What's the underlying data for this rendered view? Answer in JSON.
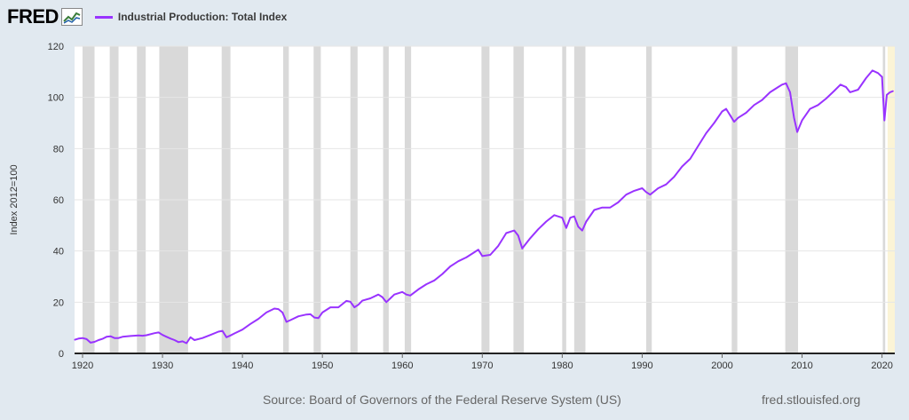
{
  "header": {
    "logo": "FRED",
    "logo_icon": "chart-line-icon",
    "legend_label": "Industrial Production: Total Index"
  },
  "footer": {
    "source": "Source: Board of Governors of the Federal Reserve System (US)",
    "url": "fred.stlouisfed.org"
  },
  "chart_data": {
    "type": "line",
    "title": "",
    "xlabel": "",
    "ylabel": "Index 2012=100",
    "xlim": [
      1919,
      2021.6
    ],
    "ylim": [
      0,
      120
    ],
    "x_ticks": [
      1920,
      1930,
      1940,
      1950,
      1960,
      1970,
      1980,
      1990,
      2000,
      2010,
      2020
    ],
    "y_ticks": [
      0,
      20,
      40,
      60,
      80,
      100,
      120
    ],
    "grid": true,
    "legend": "top-left",
    "colors": {
      "line": "#9933ff",
      "recession": "#d9d9d9",
      "highlight": "#fbf4d6",
      "plot_bg": "#ffffff"
    },
    "recessions": [
      [
        1920.0,
        1921.5
      ],
      [
        1923.4,
        1924.5
      ],
      [
        1926.8,
        1927.9
      ],
      [
        1929.6,
        1933.2
      ],
      [
        1937.4,
        1938.5
      ],
      [
        1945.1,
        1945.8
      ],
      [
        1948.9,
        1949.8
      ],
      [
        1953.5,
        1954.4
      ],
      [
        1957.6,
        1958.3
      ],
      [
        1960.3,
        1961.1
      ],
      [
        1969.9,
        1970.9
      ],
      [
        1973.9,
        1975.2
      ],
      [
        1980.0,
        1980.5
      ],
      [
        1981.5,
        1982.9
      ],
      [
        1990.5,
        1991.2
      ],
      [
        2001.2,
        2001.9
      ],
      [
        2007.9,
        2009.5
      ],
      [
        2020.1,
        2020.4
      ]
    ],
    "series": [
      {
        "name": "Industrial Production: Total Index",
        "x": [
          1919.0,
          1919.5,
          1920.0,
          1920.5,
          1921.0,
          1921.5,
          1922.0,
          1922.5,
          1923.0,
          1923.5,
          1924.0,
          1924.5,
          1925.0,
          1926.0,
          1927.0,
          1927.5,
          1928.0,
          1929.0,
          1929.5,
          1930.0,
          1930.5,
          1931.0,
          1931.5,
          1932.0,
          1932.5,
          1933.0,
          1933.5,
          1934.0,
          1935.0,
          1936.0,
          1937.0,
          1937.5,
          1938.0,
          1938.5,
          1939.0,
          1940.0,
          1941.0,
          1942.0,
          1943.0,
          1944.0,
          1944.5,
          1945.0,
          1945.5,
          1946.0,
          1947.0,
          1948.0,
          1948.5,
          1949.0,
          1949.5,
          1950.0,
          1951.0,
          1952.0,
          1953.0,
          1953.5,
          1954.0,
          1954.5,
          1955.0,
          1956.0,
          1957.0,
          1957.5,
          1958.0,
          1958.5,
          1959.0,
          1960.0,
          1960.5,
          1961.0,
          1962.0,
          1963.0,
          1964.0,
          1965.0,
          1966.0,
          1967.0,
          1968.0,
          1969.0,
          1969.5,
          1970.0,
          1971.0,
          1972.0,
          1973.0,
          1974.0,
          1974.5,
          1975.0,
          1976.0,
          1977.0,
          1978.0,
          1979.0,
          1980.0,
          1980.5,
          1981.0,
          1981.5,
          1982.0,
          1982.5,
          1983.0,
          1984.0,
          1985.0,
          1986.0,
          1987.0,
          1988.0,
          1989.0,
          1990.0,
          1990.5,
          1991.0,
          1992.0,
          1993.0,
          1994.0,
          1995.0,
          1996.0,
          1997.0,
          1998.0,
          1999.0,
          2000.0,
          2000.5,
          2001.0,
          2001.5,
          2002.0,
          2003.0,
          2004.0,
          2005.0,
          2006.0,
          2007.0,
          2007.5,
          2008.0,
          2008.5,
          2009.0,
          2009.4,
          2010.0,
          2011.0,
          2012.0,
          2013.0,
          2014.0,
          2014.8,
          2015.5,
          2016.0,
          2017.0,
          2018.0,
          2018.8,
          2019.5,
          2020.0,
          2020.3,
          2020.6,
          2021.0,
          2021.4
        ],
        "y": [
          5.3,
          5.8,
          6.0,
          5.6,
          4.2,
          4.5,
          5.2,
          5.7,
          6.5,
          6.7,
          6.0,
          6.0,
          6.5,
          6.8,
          7.0,
          6.9,
          7.1,
          7.9,
          8.2,
          7.2,
          6.5,
          5.8,
          5.2,
          4.4,
          4.7,
          4.0,
          6.3,
          5.2,
          6.0,
          7.2,
          8.5,
          8.8,
          6.3,
          7.0,
          7.8,
          9.3,
          11.5,
          13.5,
          16.0,
          17.5,
          17.3,
          16.0,
          12.3,
          13.0,
          14.5,
          15.2,
          15.3,
          14.0,
          13.8,
          16.0,
          18.0,
          18.0,
          20.5,
          20.2,
          18.0,
          19.0,
          20.6,
          21.5,
          23.0,
          22.0,
          20.0,
          21.5,
          23.0,
          24.0,
          23.0,
          22.6,
          25.0,
          27.0,
          28.5,
          31.0,
          34.0,
          36.0,
          37.5,
          39.5,
          40.5,
          38.0,
          38.5,
          42.0,
          47.0,
          48.0,
          46.0,
          41.0,
          45.0,
          48.5,
          51.5,
          54.0,
          53.0,
          49.0,
          53.0,
          53.5,
          49.5,
          48.0,
          51.5,
          56.0,
          57.0,
          57.0,
          59.0,
          62.0,
          63.5,
          64.5,
          63.0,
          62.0,
          64.5,
          66.0,
          69.0,
          73.0,
          76.0,
          81.0,
          86.0,
          90.0,
          94.5,
          95.5,
          93.0,
          90.5,
          92.0,
          94.0,
          97.0,
          99.0,
          102.0,
          104.0,
          105.0,
          105.5,
          102.0,
          92.0,
          86.5,
          91.0,
          95.5,
          97.0,
          99.5,
          102.5,
          105.0,
          104.0,
          102.0,
          103.0,
          107.5,
          110.5,
          109.5,
          108.0,
          91.0,
          101.0,
          102.0,
          102.5
        ]
      }
    ]
  }
}
